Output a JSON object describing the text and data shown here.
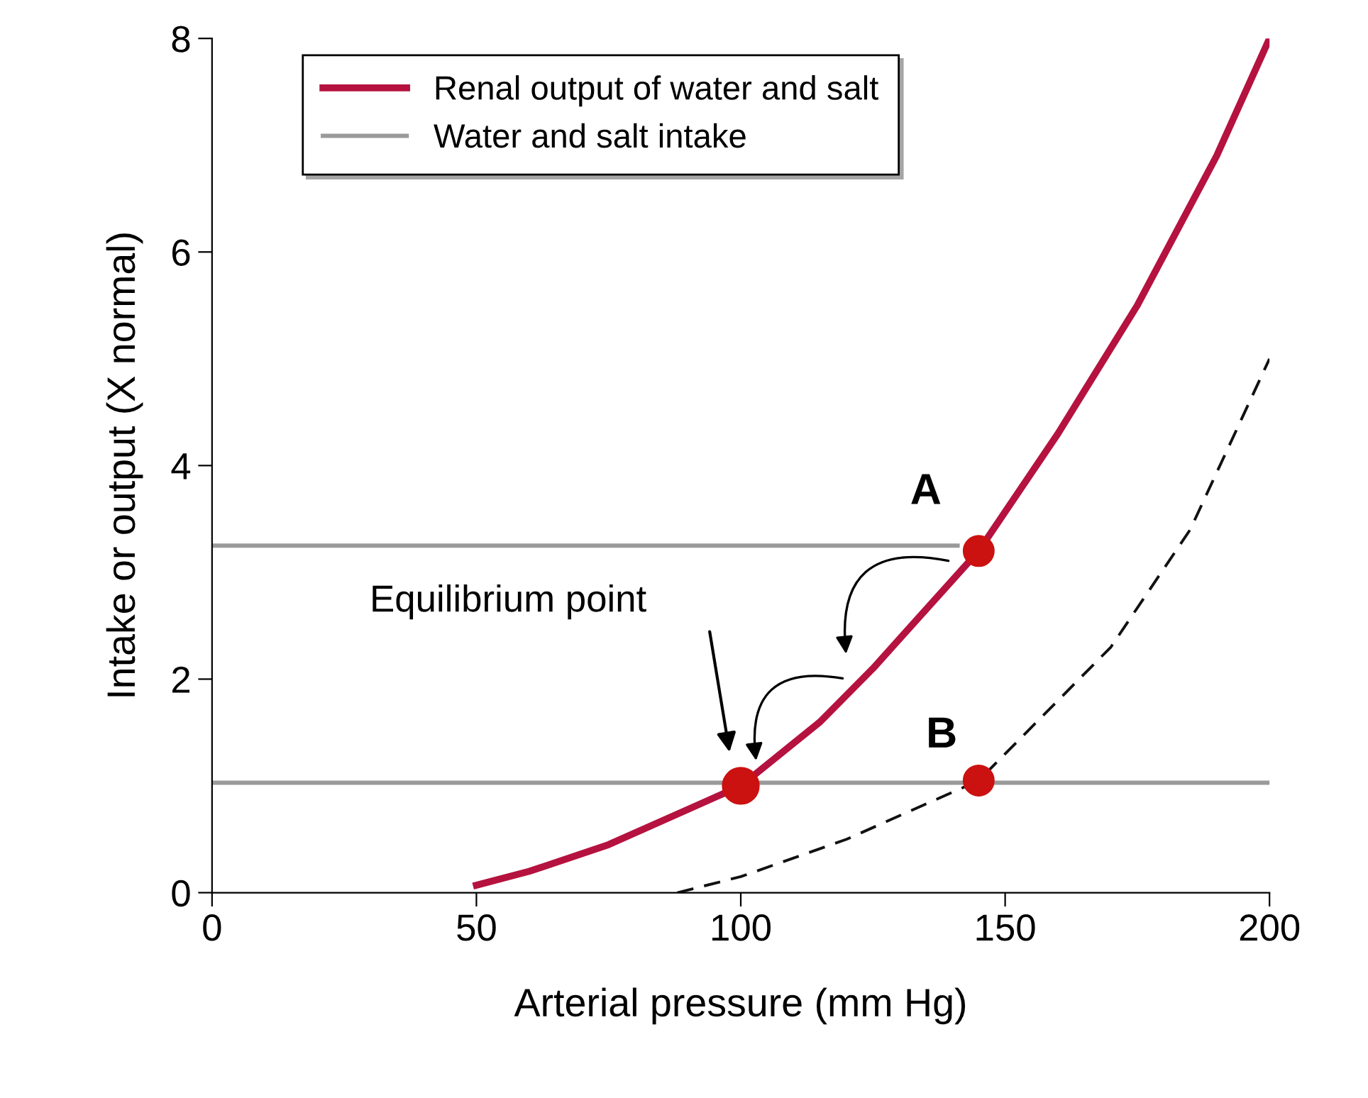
{
  "chart_data": {
    "type": "line",
    "xlabel": "Arterial pressure (mm Hg)",
    "ylabel": "Intake or output (X normal)",
    "xlim": [
      0,
      200
    ],
    "ylim": [
      0,
      8
    ],
    "xticks": [
      0,
      50,
      100,
      150,
      200
    ],
    "yticks": [
      0,
      2,
      4,
      6,
      8
    ],
    "grid": false,
    "legend": "top left",
    "marker": "none",
    "series": [
      {
        "name": "Renal output of water and salt",
        "color": "#b5123f",
        "x": [
          50,
          60,
          75,
          90,
          100,
          115,
          125,
          145,
          160,
          175,
          190,
          200
        ],
        "values": [
          0.07,
          0.2,
          0.45,
          0.78,
          1.0,
          1.6,
          2.1,
          3.2,
          4.3,
          5.5,
          6.9,
          8.0
        ],
        "line_style": "solid"
      },
      {
        "name": "Water and salt intake",
        "color": "#9a9a9a",
        "x": [
          0,
          200
        ],
        "values": [
          1.03,
          1.03
        ],
        "line_style": "solid"
      },
      {
        "color": "#9a9a9a",
        "x": [
          0,
          141
        ],
        "values": [
          3.25,
          3.25
        ],
        "line_style": "solid"
      },
      {
        "color": "#111111",
        "x": [
          88,
          100,
          120,
          145,
          170,
          185,
          200
        ],
        "values": [
          0,
          0.15,
          0.5,
          1.05,
          2.3,
          3.4,
          5.0
        ],
        "line_style": "dashed"
      },
      {
        "type": "scatter",
        "color": "#cc1111",
        "x": [
          100,
          145,
          145
        ],
        "values": [
          1.0,
          3.2,
          1.05
        ],
        "marker": "circle"
      }
    ],
    "annotations": [
      "A",
      "B",
      "Equilibrium point"
    ]
  }
}
